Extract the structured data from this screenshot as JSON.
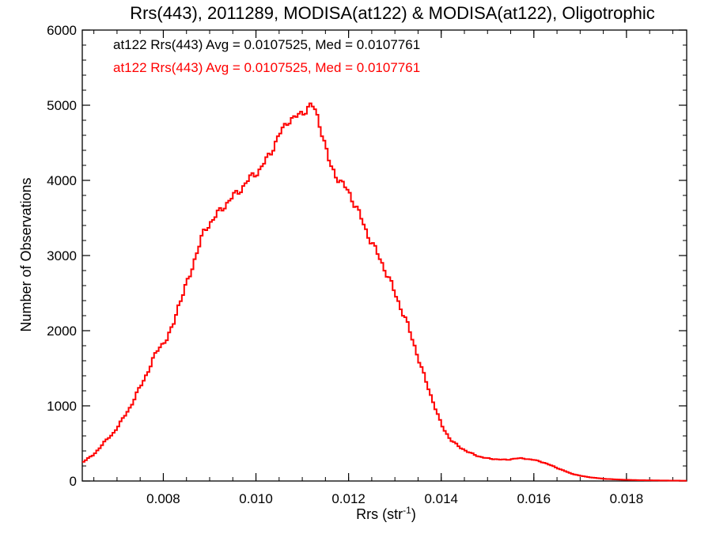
{
  "chart_data": {
    "type": "line",
    "title": "Rrs(443), 2011289, MODISA(at122) & MODISA(at122), Oligotrophic",
    "xlabel_main": "Rrs (str",
    "xlabel_sup": "-1",
    "xlabel_end": ")",
    "ylabel": "Number of Observations",
    "xlim": [
      0.00625,
      0.0193
    ],
    "ylim": [
      0,
      6000
    ],
    "xticks": [
      0.008,
      0.01,
      0.012,
      0.014,
      0.016,
      0.018
    ],
    "xtick_labels": [
      "0.008",
      "0.010",
      "0.012",
      "0.014",
      "0.016",
      "0.018"
    ],
    "yticks": [
      0,
      1000,
      2000,
      3000,
      4000,
      5000,
      6000
    ],
    "ytick_labels": [
      "0",
      "1000",
      "2000",
      "3000",
      "4000",
      "5000",
      "6000"
    ],
    "annotations": [
      {
        "text": "at122 Rrs(443) Avg = 0.0107525, Med = 0.0107761",
        "color": "#000000"
      },
      {
        "text": "at122 Rrs(443) Avg = 0.0107525, Med = 0.0107761",
        "color": "#ff0000"
      }
    ],
    "series": [
      {
        "color": "#ff0000",
        "step": true,
        "points": [
          [
            0.00625,
            250
          ],
          [
            0.0065,
            350
          ],
          [
            0.0067,
            500
          ],
          [
            0.0069,
            620
          ],
          [
            0.0071,
            800
          ],
          [
            0.0073,
            1000
          ],
          [
            0.0075,
            1250
          ],
          [
            0.0077,
            1500
          ],
          [
            0.0079,
            1780
          ],
          [
            0.0081,
            1900
          ],
          [
            0.0082,
            2050
          ],
          [
            0.0083,
            2300
          ],
          [
            0.0085,
            2600
          ],
          [
            0.0087,
            3000
          ],
          [
            0.0089,
            3350
          ],
          [
            0.0091,
            3500
          ],
          [
            0.0093,
            3650
          ],
          [
            0.0095,
            3780
          ],
          [
            0.0097,
            3900
          ],
          [
            0.0099,
            4050
          ],
          [
            0.0101,
            4150
          ],
          [
            0.0103,
            4350
          ],
          [
            0.0105,
            4600
          ],
          [
            0.0107,
            4800
          ],
          [
            0.0109,
            4850
          ],
          [
            0.0111,
            4950
          ],
          [
            0.0112,
            5010
          ],
          [
            0.0113,
            4900
          ],
          [
            0.0114,
            4700
          ],
          [
            0.0115,
            4450
          ],
          [
            0.0116,
            4200
          ],
          [
            0.0118,
            4000
          ],
          [
            0.012,
            3850
          ],
          [
            0.0122,
            3600
          ],
          [
            0.0124,
            3300
          ],
          [
            0.0126,
            3050
          ],
          [
            0.0128,
            2800
          ],
          [
            0.013,
            2500
          ],
          [
            0.0132,
            2200
          ],
          [
            0.0134,
            1850
          ],
          [
            0.0136,
            1450
          ],
          [
            0.0138,
            1100
          ],
          [
            0.014,
            750
          ],
          [
            0.0142,
            550
          ],
          [
            0.0144,
            450
          ],
          [
            0.0146,
            380
          ],
          [
            0.0148,
            330
          ],
          [
            0.015,
            300
          ],
          [
            0.0152,
            290
          ],
          [
            0.0154,
            280
          ],
          [
            0.0156,
            300
          ],
          [
            0.0158,
            300
          ],
          [
            0.016,
            280
          ],
          [
            0.0162,
            250
          ],
          [
            0.0164,
            200
          ],
          [
            0.0166,
            150
          ],
          [
            0.0168,
            100
          ],
          [
            0.017,
            70
          ],
          [
            0.0172,
            50
          ],
          [
            0.0175,
            30
          ],
          [
            0.0178,
            20
          ],
          [
            0.0182,
            12
          ],
          [
            0.0186,
            8
          ],
          [
            0.019,
            5
          ],
          [
            0.0193,
            4
          ]
        ]
      }
    ]
  }
}
